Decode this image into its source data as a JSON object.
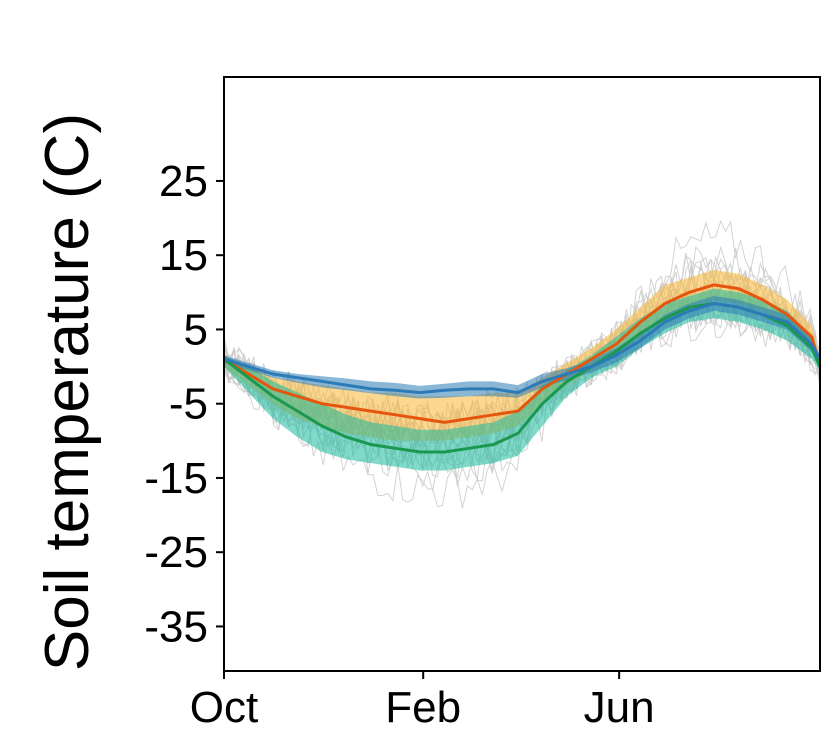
{
  "chart_data": {
    "type": "line",
    "title": "",
    "xlabel": "",
    "ylabel": "Soil temperature (C)",
    "xlim": [
      0,
      365
    ],
    "ylim": [
      -41,
      39
    ],
    "x_ticks": [
      {
        "label": "Oct",
        "value": 0
      },
      {
        "label": "Feb",
        "value": 122
      },
      {
        "label": "Jun",
        "value": 242
      }
    ],
    "y_ticks": [
      {
        "label": "25",
        "value": 25
      },
      {
        "label": "15",
        "value": 15
      },
      {
        "label": "5",
        "value": 5
      },
      {
        "label": "-5",
        "value": -5
      },
      {
        "label": "-15",
        "value": -15
      },
      {
        "label": "-25",
        "value": -25
      },
      {
        "label": "-35",
        "value": -35
      }
    ],
    "x": [
      0,
      15,
      30,
      45,
      60,
      75,
      90,
      105,
      120,
      135,
      150,
      165,
      180,
      195,
      210,
      225,
      240,
      255,
      270,
      285,
      300,
      315,
      330,
      345,
      360,
      365
    ],
    "series": [
      {
        "name": "blue",
        "color": "#2c7bb6",
        "band_color": "#2c7bb6",
        "values": [
          1,
          0,
          -1,
          -1.5,
          -2,
          -2.5,
          -3,
          -3.2,
          -3.5,
          -3.2,
          -3,
          -3,
          -3.5,
          -2,
          -1,
          0,
          1.5,
          3.5,
          6,
          7.5,
          8.5,
          8,
          7,
          6,
          3,
          1
        ],
        "band_lower": [
          0.5,
          -0.5,
          -1.5,
          -2.2,
          -2.8,
          -3.2,
          -3.6,
          -4,
          -4.3,
          -4.2,
          -4,
          -4,
          -4.2,
          -2.8,
          -1.8,
          -0.8,
          0.5,
          2.5,
          5,
          6.5,
          7.5,
          7,
          6,
          5,
          2,
          0.5
        ],
        "band_upper": [
          1.5,
          0.5,
          -0.5,
          -1,
          -1.3,
          -1.6,
          -2,
          -2.2,
          -2.6,
          -2.3,
          -2,
          -2,
          -2.5,
          -1,
          -0.2,
          0.8,
          2.5,
          4.5,
          7,
          8.5,
          9.5,
          9,
          8,
          7,
          4,
          1.5
        ]
      },
      {
        "name": "orange",
        "color": "#e6550d",
        "band_color": "#f7b733",
        "values": [
          1,
          -1,
          -3,
          -4,
          -5,
          -5.5,
          -6,
          -6.5,
          -7,
          -7.5,
          -7,
          -6.5,
          -6,
          -3,
          -1,
          1,
          3,
          6,
          8.5,
          10,
          11,
          10.5,
          9,
          7,
          4,
          0
        ],
        "band_lower": [
          0,
          -2.5,
          -5,
          -7,
          -8,
          -9,
          -9.5,
          -10,
          -10,
          -10,
          -9.5,
          -9,
          -8,
          -5,
          -2.5,
          -0.5,
          1.5,
          4,
          6.5,
          8,
          9,
          8.5,
          7.5,
          5.5,
          2.5,
          -0.5
        ],
        "band_upper": [
          1.5,
          0,
          -1.5,
          -2,
          -2.5,
          -3,
          -3.5,
          -3.5,
          -4,
          -4,
          -4,
          -3.5,
          -3.5,
          -1.5,
          0.5,
          2.5,
          5,
          8,
          11,
          12,
          13,
          12.5,
          11,
          9,
          5.5,
          1
        ]
      },
      {
        "name": "green",
        "color": "#1a9850",
        "band_color": "#1abc9c",
        "values": [
          1,
          -1.5,
          -4,
          -6,
          -8,
          -9.5,
          -10.5,
          -11,
          -11.5,
          -11.5,
          -11,
          -10.5,
          -9,
          -5,
          -2,
          0,
          2,
          4.5,
          6.5,
          8,
          8.5,
          8,
          7,
          5.5,
          2.5,
          0
        ],
        "band_lower": [
          0,
          -3.5,
          -7,
          -9.5,
          -11.5,
          -12.5,
          -13,
          -13.5,
          -14,
          -14,
          -13.5,
          -13,
          -12,
          -8,
          -4,
          -1.5,
          0,
          2.5,
          4.5,
          6,
          6.5,
          6,
          5,
          3.5,
          1,
          -0.5
        ],
        "band_upper": [
          1.5,
          0,
          -2,
          -3.5,
          -5,
          -6.5,
          -7.5,
          -8,
          -8.5,
          -8.5,
          -8,
          -7.5,
          -6,
          -2.5,
          -0.5,
          1.5,
          4,
          6.5,
          8.5,
          9.5,
          10.5,
          10,
          9,
          7.5,
          4,
          1
        ]
      }
    ]
  }
}
